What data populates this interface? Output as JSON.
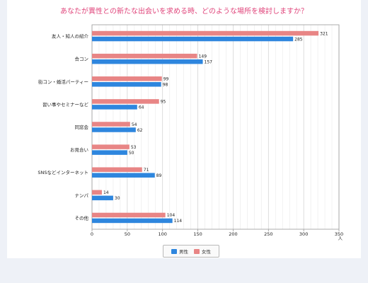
{
  "chart_data": {
    "type": "bar",
    "orientation": "horizontal",
    "title": "あなたが異性との新たな出会いを求める時、どのような場所を検討しますか？",
    "categories": [
      "友人・知人の紹介",
      "合コン",
      "街コン・婚活パーティー",
      "習い事やセミナーなど",
      "同窓会",
      "お見合い",
      "SNSなどインターネット",
      "ナンパ",
      "その他"
    ],
    "series": [
      {
        "name": "女性",
        "color": "#e88585",
        "values": [
          321,
          149,
          99,
          95,
          54,
          53,
          71,
          14,
          104
        ]
      },
      {
        "name": "男性",
        "color": "#2e86de",
        "values": [
          285,
          157,
          98,
          64,
          62,
          50,
          89,
          30,
          114
        ]
      }
    ],
    "xlim": [
      0,
      350
    ],
    "xticks": [
      0,
      50,
      100,
      150,
      200,
      250,
      300,
      350
    ],
    "unit": "人",
    "grid": true,
    "legend_position": "bottom",
    "legend_order": [
      "男性",
      "女性"
    ]
  },
  "colors": {
    "title": "#e0457b",
    "female": "#e88585",
    "male": "#2e86de"
  }
}
